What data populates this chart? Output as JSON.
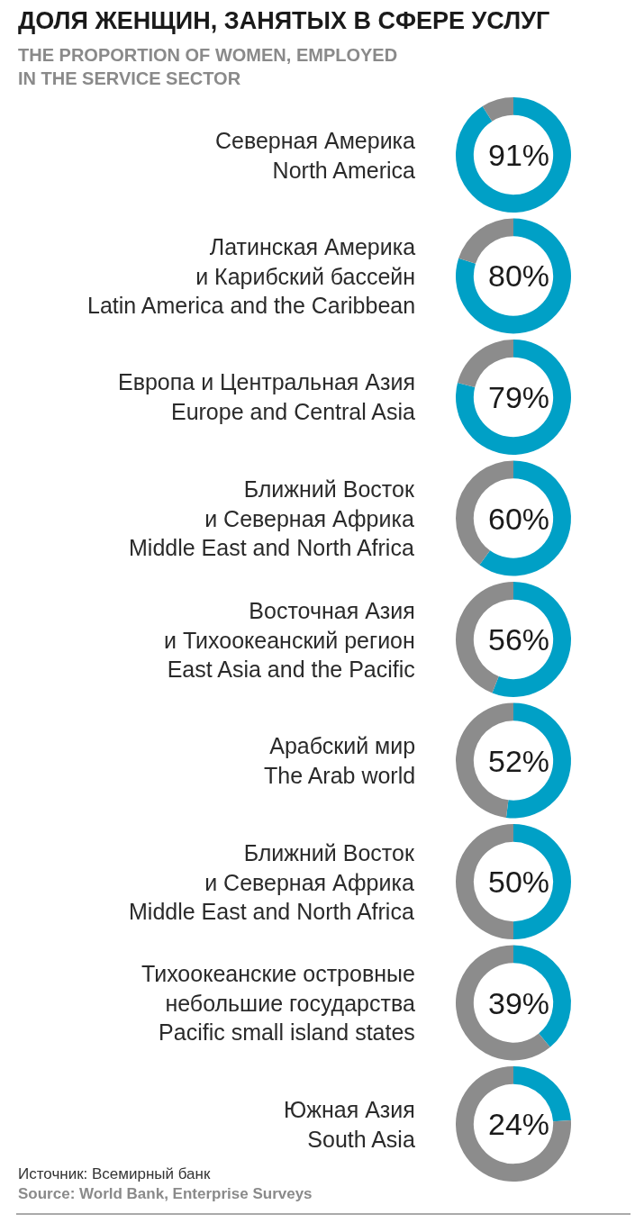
{
  "chart_data": [
    {
      "type": "other",
      "title": "ДОЛЯ ЖЕНЩИН, ЗАНЯТЫХ В СФЕРЕ УСЛУГ",
      "subtitle": "THE PROPORTION OF WOMEN, EMPLOYED\nIN THE SERVICE SECTOR",
      "annotations": [
        "Источник: Всемирный банк",
        "Source: World Bank, Enterprise Surveys"
      ]
    },
    {
      "type": "donut",
      "title": "Северная Америка\nNorth America",
      "categories": [
        null,
        null
      ],
      "values": [
        91,
        9
      ],
      "colors": [
        "#00a0c6",
        "#8c8c8c"
      ],
      "value_labels": [
        "91%",
        null
      ]
    },
    {
      "type": "donut",
      "title": "Латинская Америка\nи Карибский бассейн\nLatin America and the Caribbean",
      "categories": [
        null,
        null
      ],
      "values": [
        80,
        20
      ],
      "colors": [
        "#00a0c6",
        "#8c8c8c"
      ],
      "value_labels": [
        "80%",
        null
      ]
    },
    {
      "type": "donut",
      "title": "Европа и Центральная Азия\nEurope and Central Asia",
      "categories": [
        null,
        null
      ],
      "values": [
        79,
        21
      ],
      "colors": [
        "#00a0c6",
        "#8c8c8c"
      ],
      "value_labels": [
        "79%",
        null
      ]
    },
    {
      "type": "donut",
      "title": "Ближний Восток\nи Северная Африка\nMiddle East and North Africa",
      "categories": [
        null,
        null
      ],
      "values": [
        60,
        40
      ],
      "colors": [
        "#00a0c6",
        "#8c8c8c"
      ],
      "value_labels": [
        "60%",
        null
      ]
    },
    {
      "type": "donut",
      "title": "Восточная Азия\nи Тихоокеанский регион\nEast Asia and the Pacific",
      "categories": [
        null,
        null
      ],
      "values": [
        56,
        44
      ],
      "colors": [
        "#00a0c6",
        "#8c8c8c"
      ],
      "value_labels": [
        "56%",
        null
      ]
    },
    {
      "type": "donut",
      "title": "Арабский мир\nThe Arab world",
      "categories": [
        null,
        null
      ],
      "values": [
        52,
        48
      ],
      "colors": [
        "#00a0c6",
        "#8c8c8c"
      ],
      "value_labels": [
        "52%",
        null
      ]
    },
    {
      "type": "donut",
      "title": "Ближний Восток\nи Северная Африка\nMiddle East and North Africa",
      "categories": [
        null,
        null
      ],
      "values": [
        50,
        50
      ],
      "colors": [
        "#00a0c6",
        "#8c8c8c"
      ],
      "value_labels": [
        "50%",
        null
      ]
    },
    {
      "type": "donut",
      "title": "Тихоокеанские островные\nнебольшие государства\nPacific small island states",
      "categories": [
        null,
        null
      ],
      "values": [
        39,
        61
      ],
      "colors": [
        "#00a0c6",
        "#8c8c8c"
      ],
      "value_labels": [
        "39%",
        null
      ]
    },
    {
      "type": "donut",
      "title": "Южная Азия\nSouth Asia",
      "categories": [
        null,
        null
      ],
      "values": [
        24,
        76
      ],
      "colors": [
        "#00a0c6",
        "#8c8c8c"
      ],
      "value_labels": [
        "24%",
        null
      ]
    }
  ]
}
